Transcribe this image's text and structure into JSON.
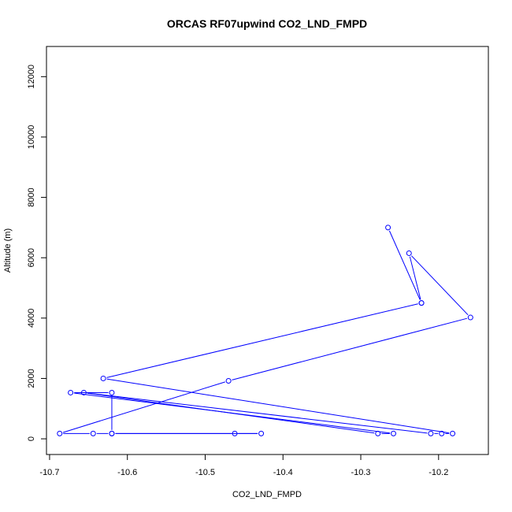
{
  "chart_data": {
    "type": "line",
    "title": "ORCAS RF07upwind CO2_LND_FMPD",
    "xlabel": "CO2_LND_FMPD",
    "ylabel": "Altitude (m)",
    "xlim": [
      -10.704,
      -10.136
    ],
    "ylim": [
      -520,
      13000
    ],
    "x_ticks": [
      -10.7,
      -10.6,
      -10.5,
      -10.4,
      -10.3,
      -10.2
    ],
    "x_tick_labels": [
      "-10.7",
      "-10.6",
      "-10.5",
      "-10.4",
      "-10.3",
      "-10.2"
    ],
    "y_ticks": [
      0,
      2000,
      4000,
      6000,
      8000,
      10000,
      12000
    ],
    "y_tick_labels": [
      "0",
      "2000",
      "4000",
      "6000",
      "8000",
      "10000",
      "12000"
    ],
    "grid": false,
    "series": [
      {
        "color": "#0000ff",
        "marker": "open-circle",
        "x": [
          -10.265,
          -10.222,
          -10.238,
          -10.159,
          -10.47,
          -10.687,
          -10.644,
          -10.62,
          -10.428,
          -10.462,
          -10.62,
          -10.62,
          -10.673,
          -10.258,
          -10.278,
          -10.656,
          -10.21,
          -10.196,
          -10.182,
          -10.631,
          -10.222
        ],
        "y": [
          7000,
          4500,
          6150,
          4020,
          1920,
          175,
          175,
          175,
          175,
          175,
          175,
          1530,
          1530,
          175,
          175,
          1530,
          175,
          175,
          175,
          2000,
          4500
        ]
      }
    ]
  }
}
